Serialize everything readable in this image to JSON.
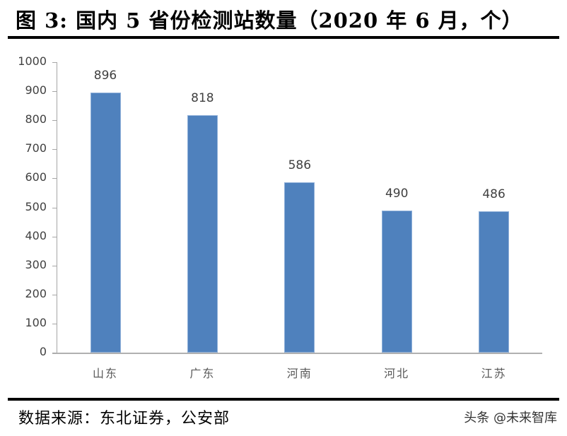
{
  "header": {
    "title": "图  3:  国内 5 省份检测站数量（2020 年 6 月，个）"
  },
  "footer": {
    "source": "数据来源：东北证券，公安部",
    "watermark": "头条 @未来智库"
  },
  "colors": {
    "bar": "#4f81bd",
    "axis": "#a6a6a6",
    "text": "#404040"
  },
  "chart_data": {
    "type": "bar",
    "title": "图 3: 国内5省份检测站数量（2020年6月，个）",
    "xlabel": "",
    "ylabel": "",
    "categories": [
      "山东",
      "广东",
      "河南",
      "河北",
      "江苏"
    ],
    "values": [
      896,
      818,
      586,
      490,
      486
    ],
    "data_labels": [
      "896",
      "818",
      "586",
      "490",
      "486"
    ],
    "ylim": [
      0,
      1000
    ],
    "yticks": [
      0,
      100,
      200,
      300,
      400,
      500,
      600,
      700,
      800,
      900,
      1000
    ],
    "ytick_labels": [
      "0",
      "100",
      "200",
      "300",
      "400",
      "500",
      "600",
      "700",
      "800",
      "900",
      "1000"
    ],
    "grid": false,
    "legend": null
  }
}
